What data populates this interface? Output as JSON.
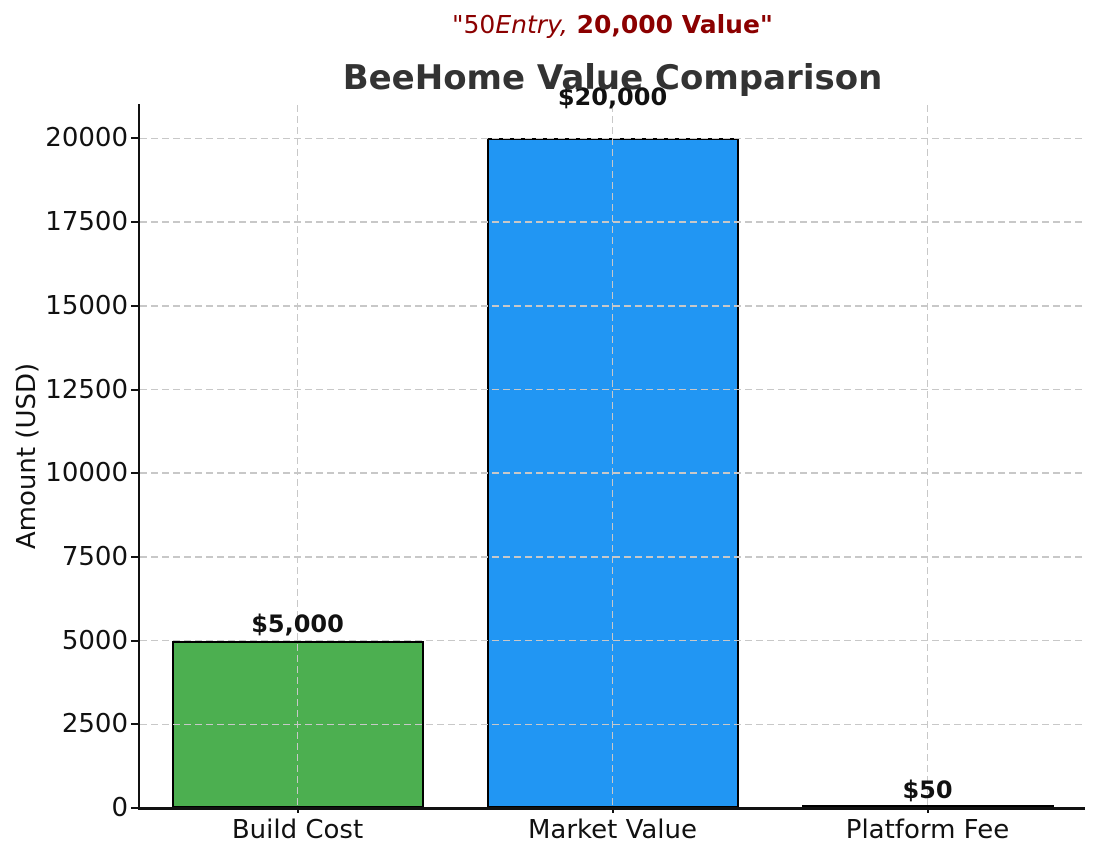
{
  "figure": {
    "suptitle": {
      "part_normal": "\"50",
      "part_italic": "Entry,",
      "part_bold": " 20,000 Value\"",
      "color": "#8B0000"
    },
    "title": "BeeHome Value Comparison",
    "title_color": "#333333"
  },
  "chart_data": {
    "type": "bar",
    "title": "BeeHome Value Comparison",
    "suptitle_text": "\"50Entry, 20,000 Value\"",
    "categories": [
      "Build Cost",
      "Market Value",
      "Platform Fee"
    ],
    "values": [
      5000,
      20000,
      50
    ],
    "bar_labels": [
      "$5,000",
      "$20,000",
      "$50"
    ],
    "bar_colors": [
      "#4CAF50",
      "#2196F3",
      "#FFC107"
    ],
    "bar_edge_color": "#000000",
    "xlabel": "",
    "ylabel": "Amount (USD)",
    "ylim": [
      0,
      21000
    ],
    "yticks": [
      0,
      2500,
      5000,
      7500,
      10000,
      12500,
      15000,
      17500,
      20000
    ],
    "grid": {
      "on": true,
      "style": "dashed",
      "color": "#c8c8c8"
    },
    "axis_color": "#111111",
    "legend": null
  }
}
